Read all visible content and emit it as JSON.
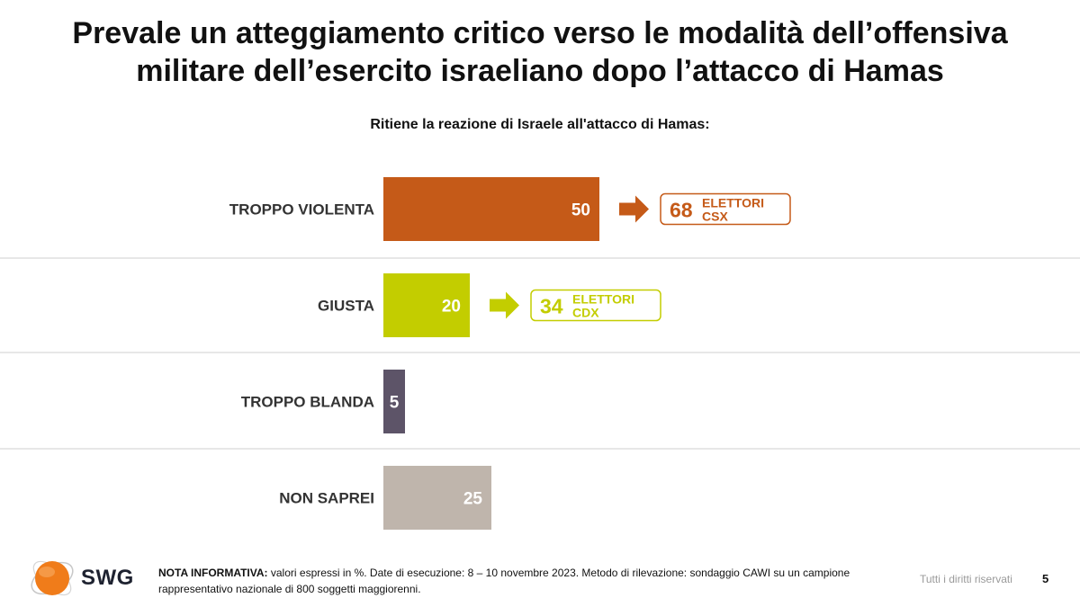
{
  "slide": {
    "title_line1": "Prevale un atteggiamento critico verso le modalità dell’offensiva",
    "title_line2": "militare dell’esercito israeliano dopo l’attacco di Hamas",
    "question": "Ritiene la reazione di Israele all'attacco di Hamas:"
  },
  "chart_data": {
    "type": "bar",
    "orientation": "horizontal",
    "title": "Ritiene la reazione di Israele all'attacco di Hamas:",
    "categories": [
      "TROPPO VIOLENTA",
      "GIUSTA",
      "TROPPO BLANDA",
      "NON SAPREI"
    ],
    "values": [
      50,
      20,
      5,
      25
    ],
    "unit": "%",
    "colors": [
      "#c55a18",
      "#c3cd00",
      "#5d5468",
      "#bfb5ac"
    ],
    "value_max": 100,
    "grid": false,
    "callouts": [
      {
        "category_index": 0,
        "value": "68",
        "label_line1": "ELETTORI",
        "label_line2": "CSX",
        "color": "#c55a18"
      },
      {
        "category_index": 1,
        "value": "34",
        "label_line1": "ELETTORI",
        "label_line2": "CDX",
        "color": "#c3cd00"
      }
    ]
  },
  "footer": {
    "brand": "SWG",
    "note_label": "NOTA INFORMATIVA:",
    "note_text": " valori espressi in %. Date di esecuzione: 8 – 10 novembre 2023. Metodo di rilevazione: sondaggio CAWI su un campione rappresentativo nazionale di 800 soggetti maggiorenni.",
    "rights": "Tutti i diritti riservati",
    "page_number": "5",
    "logo_color": "#f07c1a"
  }
}
